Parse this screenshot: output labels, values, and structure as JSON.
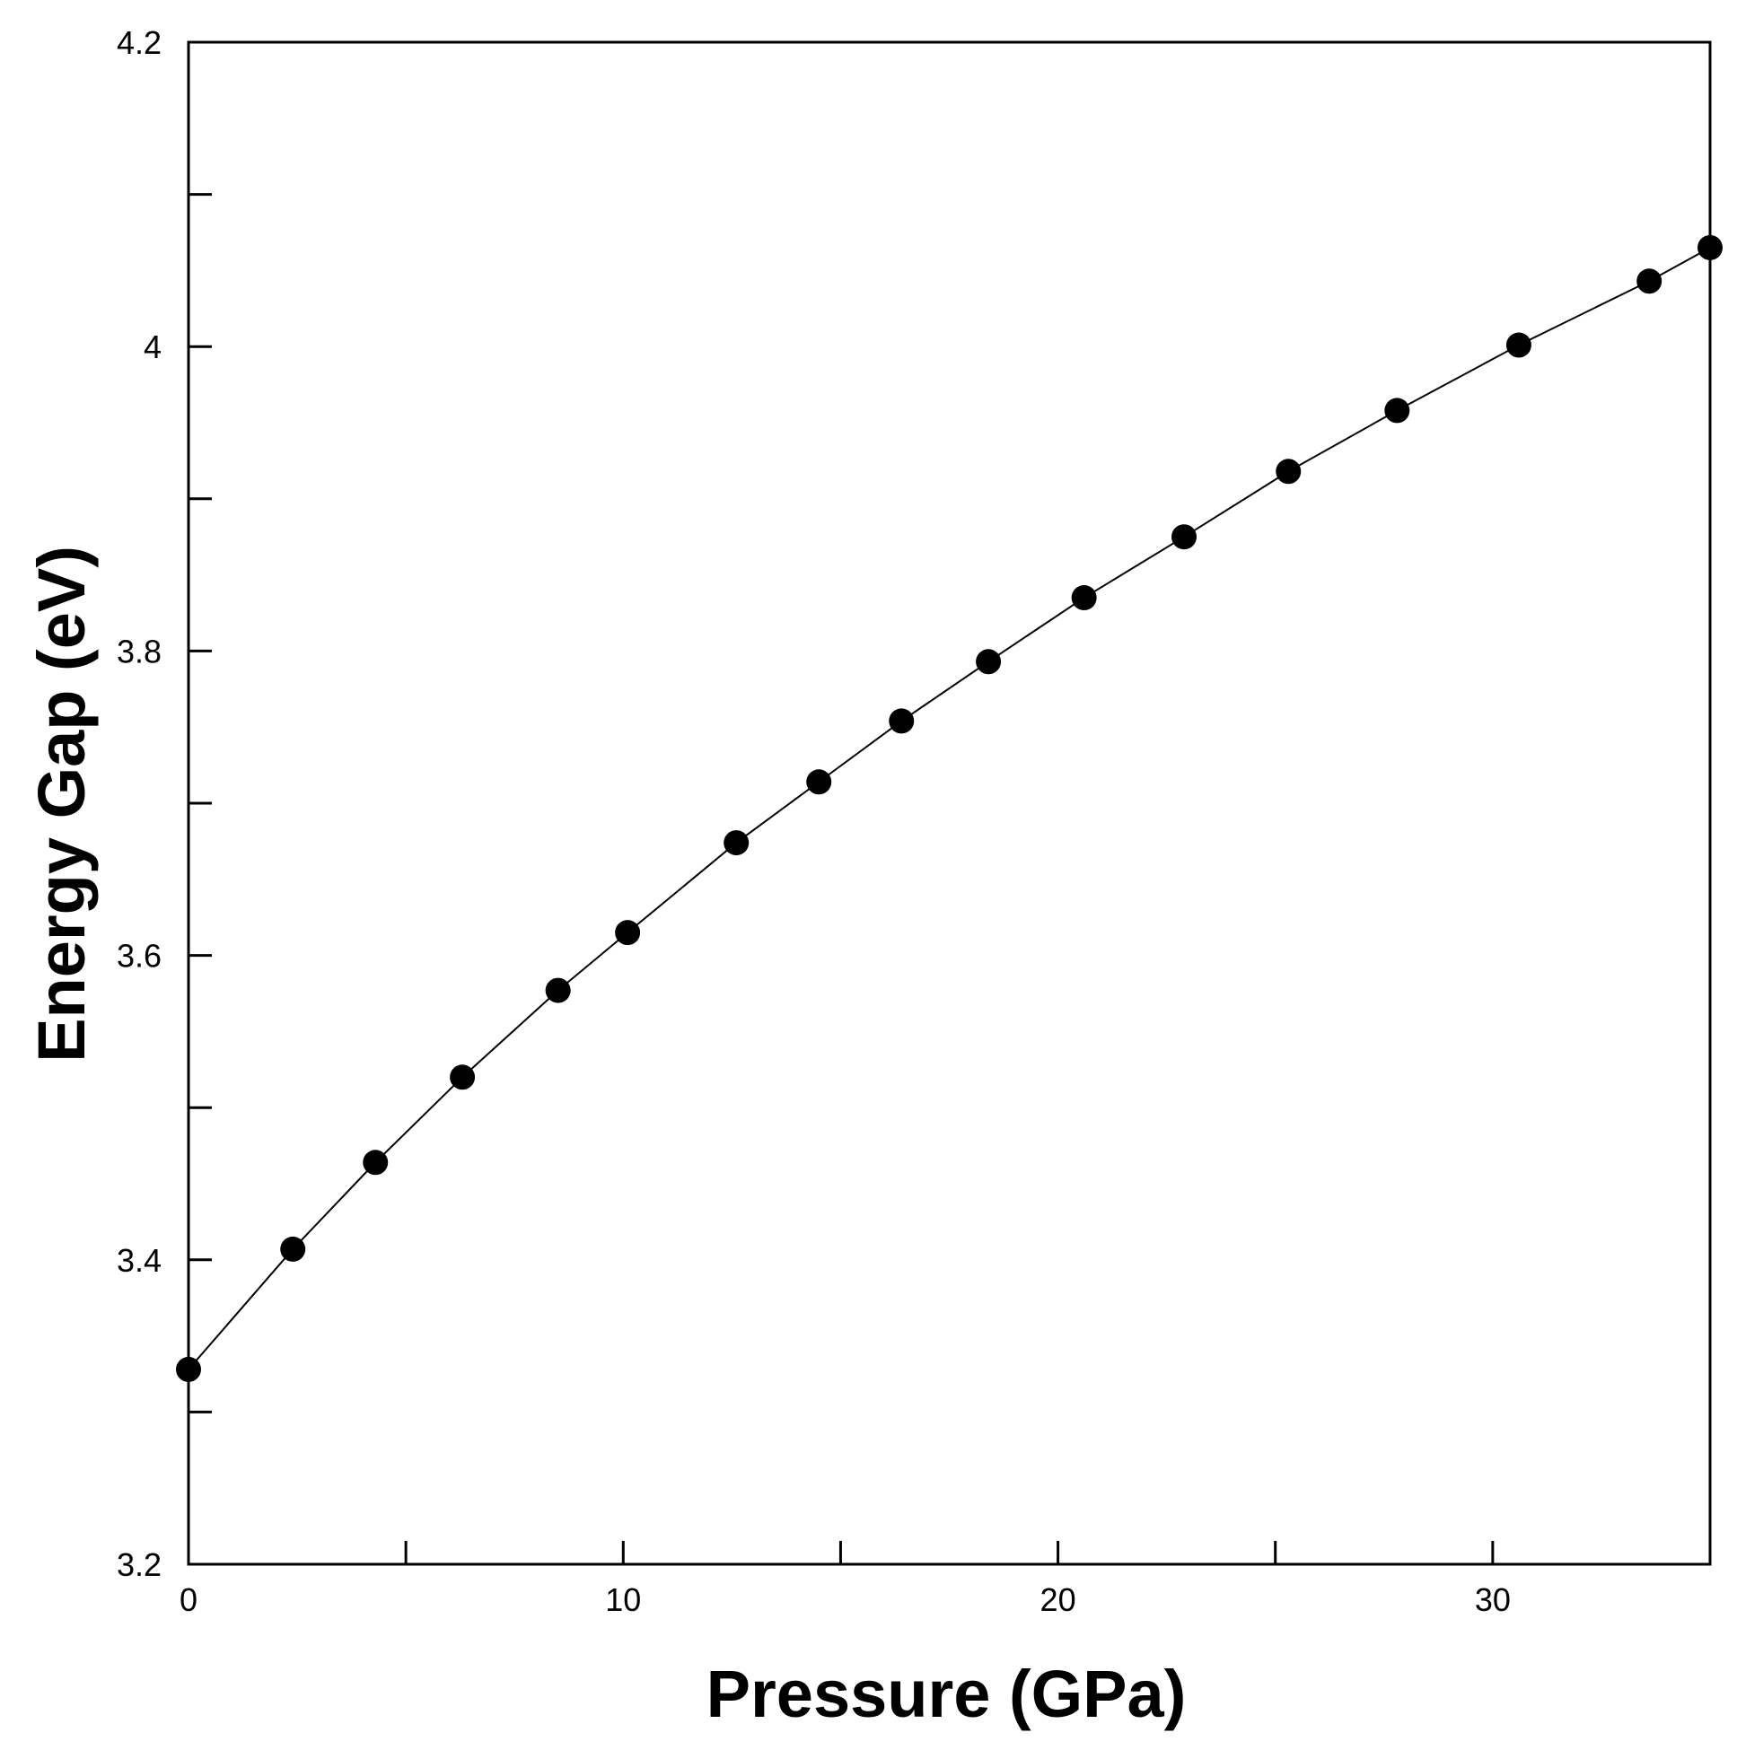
{
  "chart_data": {
    "type": "line",
    "title": "",
    "xlabel": "Pressure (GPa)",
    "ylabel": "Energy Gap (eV)",
    "xlim": [
      0,
      35
    ],
    "ylim": [
      3.2,
      4.2
    ],
    "x_ticks": [
      0,
      10,
      20,
      30
    ],
    "x_tick_labels": [
      "0",
      "10",
      "20",
      "30"
    ],
    "x_minor_ticks": [
      5,
      15,
      25
    ],
    "y_ticks": [
      3.2,
      3.4,
      3.6,
      3.8,
      4.0,
      4.2
    ],
    "y_tick_labels": [
      "3.2",
      "3.4",
      "3.6",
      "3.8",
      "4",
      "4.2"
    ],
    "y_minor_ticks": [
      3.3,
      3.5,
      3.7,
      3.9,
      4.1
    ],
    "grid": false,
    "legend": "none",
    "marker": "filled-circle",
    "line_color": "#000000",
    "marker_color": "#000000",
    "series": [
      {
        "x": [
          0,
          2.4,
          4.3,
          6.3,
          8.5,
          10.1,
          12.6,
          14.5,
          16.4,
          18.4,
          20.6,
          22.9,
          25.3,
          27.8,
          30.6,
          33.6,
          35
        ],
        "values": [
          3.328,
          3.407,
          3.464,
          3.52,
          3.577,
          3.615,
          3.674,
          3.714,
          3.754,
          3.793,
          3.835,
          3.875,
          3.918,
          3.958,
          4.001,
          4.043,
          4.065
        ]
      }
    ]
  }
}
